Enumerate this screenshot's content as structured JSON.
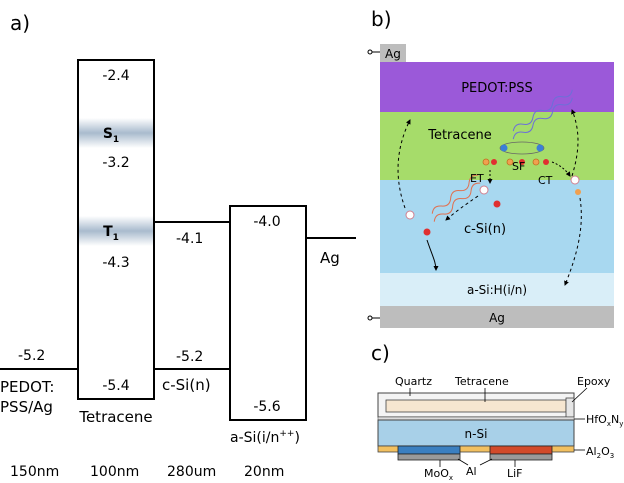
{
  "panel_a": {
    "label": "a)",
    "energy_values": {
      "tetracene_top": "-2.4",
      "s1_level": "-3.2",
      "t1_level": "-4.3",
      "tetracene_bottom": "-5.4",
      "csi_top": "-4.1",
      "csi_bottom": "-5.2",
      "asi_top": "-4.0",
      "asi_bottom": "-5.6",
      "pedot_level": "-5.2"
    },
    "state_labels": {
      "s1_main": "S",
      "s1_sub": "1",
      "t1_main": "T",
      "t1_sub": "1"
    },
    "materials": {
      "pedot_line1": "PEDOT:",
      "pedot_line2": "PSS/Ag",
      "tetracene": "Tetracene",
      "csi": "c-Si(n)",
      "asi_main": "a-Si(i/n",
      "asi_sup": "++",
      "asi_end": ")",
      "ag": "Ag"
    },
    "thicknesses": [
      "150nm",
      "100nm",
      "280um",
      "20nm"
    ],
    "colors": {
      "state_band": "#9fb3c8"
    }
  },
  "panel_b": {
    "label": "b)",
    "layers": {
      "ag_top": "Ag",
      "pedot": "PEDOT:PSS",
      "tetracene": "Tetracene",
      "csi": "c-Si(n)",
      "asi": "a-Si:H(i/n)",
      "ag_bottom": "Ag"
    },
    "process_labels": {
      "sf": "SF",
      "et": "ET",
      "ct": "CT"
    },
    "colors": {
      "pedot": "#9b59d9",
      "tetracene": "#a6dc6a",
      "csi": "#a8d8f0",
      "asi": "#d9eef8",
      "ag": "#bdbdbd",
      "electron": "#e03030",
      "exciton_orange": "#f0a050"
    }
  },
  "panel_c": {
    "label": "c)",
    "labels": {
      "quartz": "Quartz",
      "tetracene": "Tetracene",
      "epoxy": "Epoxy",
      "hfo_main": "HfO",
      "hfo_x": "x",
      "hfo_n": "N",
      "hfo_y": "y",
      "nsi": "n-Si",
      "al2o3_main": "Al",
      "al2o3_2": "2",
      "al2o3_o": "O",
      "al2o3_3": "3",
      "moox_main": "MoO",
      "moox_x": "x",
      "al": "Al",
      "lif": "LiF"
    },
    "colors": {
      "nsi": "#a8d0e8",
      "al2o3": "#f2c060",
      "moox": "#3b7fc0",
      "lif": "#d24a2a",
      "tetracene_film": "#f6e6d0"
    }
  }
}
